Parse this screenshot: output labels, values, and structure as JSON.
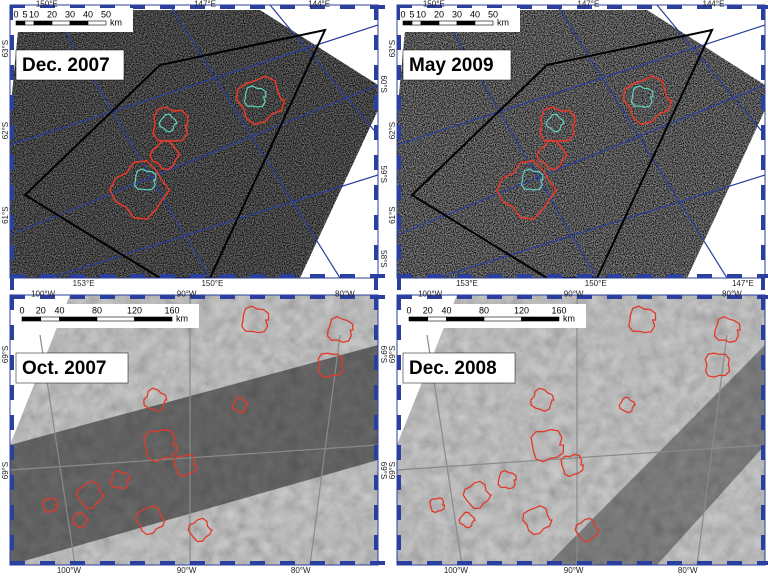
{
  "panels": [
    {
      "label": "Dec. 2007",
      "top_labels": [
        "150°E",
        "147°E",
        "144°E"
      ],
      "bottom_labels": [
        "153°E",
        "150°E"
      ],
      "left_labels": [
        "63°S",
        "62°S",
        "61°S"
      ],
      "right_labels": [
        "60°S",
        "59°S",
        "58°S"
      ],
      "scale_ticks": [
        "0",
        "5",
        "10",
        "20",
        "30",
        "40",
        "50"
      ],
      "scale_unit": "km"
    },
    {
      "label": "May 2009",
      "top_labels": [
        "150°E",
        "147°E",
        "144°E"
      ],
      "bottom_labels": [
        "153°E",
        "150°E",
        "147°E"
      ],
      "left_labels": [
        "63°S",
        "62°S",
        "61°S"
      ],
      "right_labels": [
        "60°S",
        "59°S",
        "58°S"
      ],
      "scale_ticks": [
        "0",
        "5",
        "10",
        "20",
        "30",
        "40",
        "50"
      ],
      "scale_unit": "km"
    },
    {
      "label": "Oct. 2007",
      "top_labels": [
        "100°W",
        "90°W",
        "80°W"
      ],
      "bottom_labels": [
        "100°W",
        "90°W",
        "80°W"
      ],
      "left_labels": [
        "69°S",
        "69°S"
      ],
      "right_labels": [
        "69°S",
        "69°S"
      ],
      "scale_ticks": [
        "0",
        "20",
        "40",
        "80",
        "120",
        "160"
      ],
      "scale_unit": "km"
    },
    {
      "label": "Dec. 2008",
      "top_labels": [
        "100°W",
        "90°W",
        "80°W"
      ],
      "bottom_labels": [
        "100°W",
        "90°W",
        "80°W"
      ],
      "left_labels": [
        "69°S",
        "69°S"
      ],
      "right_labels": [
        "69°S",
        "69°S"
      ],
      "scale_ticks": [
        "0",
        "20",
        "40",
        "80",
        "120",
        "160"
      ],
      "scale_unit": "km"
    }
  ]
}
